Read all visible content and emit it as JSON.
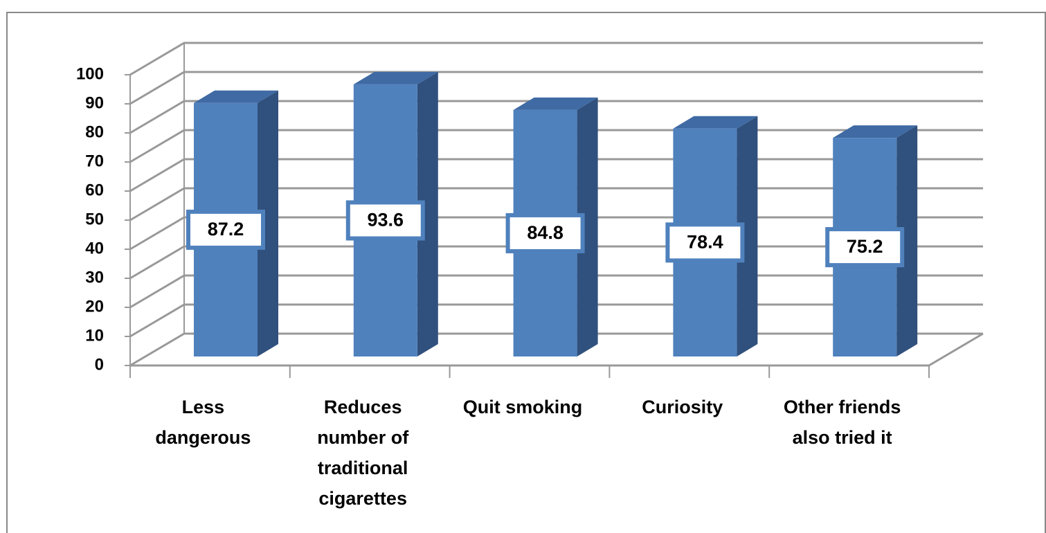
{
  "chart_data": {
    "type": "bar3d",
    "categories": [
      "Less dangerous",
      "Reduces number of traditional cigarettes",
      "Quit smoking",
      "Curiosity",
      "Other friends also tried it"
    ],
    "values": [
      87.2,
      93.6,
      84.8,
      78.4,
      75.2
    ],
    "color": "#4f81bd",
    "ylim": [
      0,
      100
    ],
    "yticks": [
      0,
      10,
      20,
      30,
      40,
      50,
      60,
      70,
      80,
      90,
      100
    ],
    "grid": true
  }
}
